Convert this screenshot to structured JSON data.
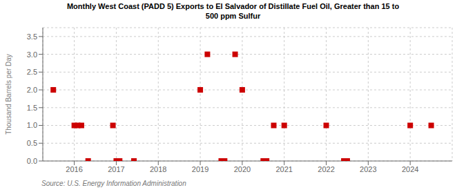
{
  "chart_data": {
    "type": "scatter",
    "title": "Monthly West Coast (PADD 5) Exports to El Salvador of Distillate Fuel Oil, Greater than 15 to\n500 ppm Sulfur",
    "ylabel": "Thousand Barrels per Day",
    "source": "Source: U.S. Energy Information Administration",
    "color": "#cc0000",
    "marker": "square",
    "grid": true,
    "xlim": [
      2015.25,
      2025.0
    ],
    "ylim": [
      0.0,
      3.75
    ],
    "xticks": [
      2016,
      2017,
      2018,
      2019,
      2020,
      2021,
      2022,
      2023,
      2024
    ],
    "yticks": [
      {
        "value": 0.0,
        "label": "0.0"
      },
      0.5,
      {
        "value": 1.0,
        "label": "1.0"
      },
      1.5,
      {
        "value": 2.0,
        "label": "2.0"
      },
      2.5,
      {
        "value": 3.0,
        "label": "3.0"
      },
      3.5
    ],
    "x": [
      2015.5,
      2016.0,
      2016.08,
      2016.17,
      2016.33,
      2016.92,
      2017.0,
      2017.08,
      2017.42,
      2019.0,
      2019.17,
      2019.5,
      2019.58,
      2019.83,
      2020.0,
      2020.5,
      2020.58,
      2020.75,
      2021.0,
      2022.0,
      2022.42,
      2022.5,
      2024.0,
      2024.5
    ],
    "values": [
      2.0,
      1.0,
      1.0,
      1.0,
      0.0,
      1.0,
      0.0,
      0.0,
      0.0,
      2.0,
      3.0,
      0.0,
      0.0,
      3.0,
      2.0,
      0.0,
      0.0,
      1.0,
      1.0,
      1.0,
      0.0,
      0.0,
      1.0,
      1.0
    ]
  }
}
